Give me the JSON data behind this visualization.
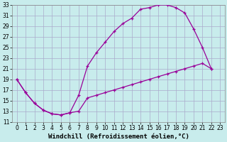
{
  "xlabel": "Windchill (Refroidissement éolien,°C)",
  "background_color": "#c8ecec",
  "line_color": "#990099",
  "xlim": [
    -0.5,
    23.5
  ],
  "ylim": [
    11,
    33
  ],
  "xticks": [
    0,
    1,
    2,
    3,
    4,
    5,
    6,
    7,
    8,
    9,
    10,
    11,
    12,
    13,
    14,
    15,
    16,
    17,
    18,
    19,
    20,
    21,
    22,
    23
  ],
  "yticks": [
    11,
    13,
    15,
    17,
    19,
    21,
    23,
    25,
    27,
    29,
    31,
    33
  ],
  "upper_line": {
    "x": [
      0,
      1,
      2,
      3,
      4,
      5,
      6,
      7,
      8,
      9,
      10,
      11,
      12,
      13,
      14,
      15,
      16,
      17,
      18,
      19,
      20,
      21,
      22
    ],
    "y": [
      19,
      16.5,
      14.5,
      13.2,
      12.5,
      12.3,
      12.7,
      16.0,
      21.5,
      24.0,
      26.0,
      28.0,
      29.5,
      30.5,
      32.2,
      32.5,
      33.0,
      33.0,
      32.5,
      31.5,
      28.5,
      25.0,
      21.0
    ]
  },
  "lower_line": {
    "x": [
      0,
      1,
      2,
      3,
      4,
      5,
      6,
      7,
      8,
      9,
      10,
      11,
      12,
      13,
      14,
      15,
      16,
      17,
      18,
      19,
      20,
      21,
      22
    ],
    "y": [
      19,
      16.5,
      14.5,
      13.2,
      12.5,
      12.3,
      12.7,
      13.0,
      15.5,
      16.0,
      16.5,
      17.0,
      17.5,
      18.0,
      18.5,
      19.0,
      19.5,
      20.0,
      20.5,
      21.0,
      21.5,
      22.0,
      21.0
    ]
  },
  "grid_color": "#aaaacc",
  "xlabel_fontsize": 6.5,
  "tick_fontsize": 5.5,
  "marker": "+"
}
